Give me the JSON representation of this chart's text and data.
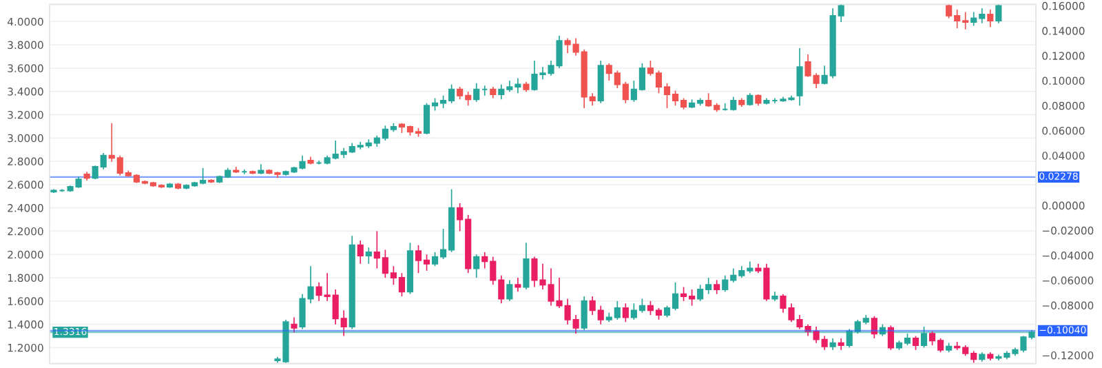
{
  "chart_data": {
    "type": "candlestick",
    "categories": [
      null,
      null,
      null,
      null,
      null,
      null,
      null,
      null,
      null,
      null,
      null,
      null,
      null,
      null,
      null,
      null,
      null,
      null,
      null,
      null,
      null,
      null,
      null,
      null,
      null,
      null,
      null,
      null,
      null,
      null,
      null,
      null,
      null,
      null,
      null,
      null,
      null,
      null,
      null,
      null,
      null,
      null,
      null,
      null,
      null,
      null,
      null,
      null,
      null,
      null,
      null,
      null,
      null,
      null,
      null,
      null,
      null,
      null,
      null,
      null,
      null,
      null,
      null,
      null,
      null,
      null,
      null,
      null,
      null,
      null,
      null,
      null,
      null,
      null,
      null,
      null,
      null,
      null,
      null,
      null,
      null,
      null,
      null,
      null,
      null,
      null,
      null,
      null,
      null,
      null,
      null,
      null,
      null,
      null,
      null,
      null,
      null,
      null,
      null,
      null,
      null,
      null,
      null,
      null,
      null,
      null,
      null,
      null,
      null,
      null,
      null,
      null,
      null,
      null,
      null,
      null,
      null,
      null,
      null
    ],
    "series": [
      {
        "type": "candlestick",
        "axis": "y2",
        "ohlc": [
          [
            0.011,
            0.013,
            0.01,
            0.012
          ],
          [
            0.012,
            0.013,
            0.011,
            0.012
          ],
          [
            0.012,
            0.016,
            0.011,
            0.015
          ],
          [
            0.015,
            0.023,
            0.014,
            0.021
          ],
          [
            0.025,
            0.027,
            0.02,
            0.022
          ],
          [
            0.022,
            0.032,
            0.021,
            0.031
          ],
          [
            0.031,
            0.042,
            0.029,
            0.04
          ],
          [
            0.04,
            0.066,
            0.035,
            0.038
          ],
          [
            0.038,
            0.04,
            0.024,
            0.026
          ],
          [
            0.026,
            0.028,
            0.023,
            0.024
          ],
          [
            0.024,
            0.025,
            0.018,
            0.019
          ],
          [
            0.019,
            0.02,
            0.017,
            0.018
          ],
          [
            0.018,
            0.019,
            0.015,
            0.016
          ],
          [
            0.016,
            0.017,
            0.014,
            0.015
          ],
          [
            0.015,
            0.018,
            0.014,
            0.017
          ],
          [
            0.017,
            0.018,
            0.013,
            0.014
          ],
          [
            0.014,
            0.017,
            0.013,
            0.016
          ],
          [
            0.016,
            0.019,
            0.015,
            0.018
          ],
          [
            0.018,
            0.03,
            0.017,
            0.02
          ],
          [
            0.02,
            0.021,
            0.018,
            0.019
          ],
          [
            0.019,
            0.024,
            0.018,
            0.023
          ],
          [
            0.023,
            0.03,
            0.022,
            0.028
          ],
          [
            0.028,
            0.031,
            0.026,
            0.027
          ],
          [
            0.027,
            0.029,
            0.025,
            0.027
          ],
          [
            0.027,
            0.028,
            0.025,
            0.026
          ],
          [
            0.026,
            0.033,
            0.025,
            0.028
          ],
          [
            0.028,
            0.029,
            0.025,
            0.026
          ],
          [
            0.026,
            0.027,
            0.022,
            0.025
          ],
          [
            0.025,
            0.028,
            0.024,
            0.027
          ],
          [
            0.027,
            0.031,
            0.026,
            0.03
          ],
          [
            0.03,
            0.04,
            0.029,
            0.035
          ],
          [
            0.036,
            0.039,
            0.033,
            0.034
          ],
          [
            0.034,
            0.036,
            0.033,
            0.034
          ],
          [
            0.034,
            0.04,
            0.033,
            0.038
          ],
          [
            0.038,
            0.052,
            0.037,
            0.041
          ],
          [
            0.041,
            0.046,
            0.038,
            0.043
          ],
          [
            0.043,
            0.05,
            0.042,
            0.047
          ],
          [
            0.047,
            0.051,
            0.045,
            0.048
          ],
          [
            0.048,
            0.053,
            0.046,
            0.05
          ],
          [
            0.05,
            0.056,
            0.047,
            0.054
          ],
          [
            0.054,
            0.064,
            0.052,
            0.061
          ],
          [
            0.061,
            0.066,
            0.059,
            0.063
          ],
          [
            0.065,
            0.066,
            0.058,
            0.063
          ],
          [
            0.063,
            0.064,
            0.056,
            0.059
          ],
          [
            0.059,
            0.062,
            0.055,
            0.058
          ],
          [
            0.058,
            0.082,
            0.057,
            0.08
          ],
          [
            0.08,
            0.086,
            0.076,
            0.082
          ],
          [
            0.082,
            0.088,
            0.078,
            0.084
          ],
          [
            0.084,
            0.097,
            0.082,
            0.093
          ],
          [
            0.093,
            0.095,
            0.085,
            0.088
          ],
          [
            0.088,
            0.091,
            0.08,
            0.085
          ],
          [
            0.085,
            0.098,
            0.083,
            0.093
          ],
          [
            0.093,
            0.096,
            0.088,
            0.093
          ],
          [
            0.093,
            0.095,
            0.086,
            0.089
          ],
          [
            0.089,
            0.097,
            0.085,
            0.093
          ],
          [
            0.093,
            0.1,
            0.091,
            0.095
          ],
          [
            0.095,
            0.102,
            0.09,
            0.097
          ],
          [
            0.097,
            0.099,
            0.091,
            0.093
          ],
          [
            0.093,
            0.116,
            0.092,
            0.105
          ],
          [
            0.105,
            0.111,
            0.101,
            0.106
          ],
          [
            0.106,
            0.116,
            0.104,
            0.112
          ],
          [
            0.112,
            0.136,
            0.11,
            0.132
          ],
          [
            0.132,
            0.134,
            0.122,
            0.129
          ],
          [
            0.129,
            0.134,
            0.12,
            0.123
          ],
          [
            0.123,
            0.125,
            0.078,
            0.087
          ],
          [
            0.087,
            0.09,
            0.08,
            0.084
          ],
          [
            0.084,
            0.116,
            0.082,
            0.112
          ],
          [
            0.112,
            0.114,
            0.1,
            0.106
          ],
          [
            0.106,
            0.108,
            0.094,
            0.097
          ],
          [
            0.097,
            0.099,
            0.082,
            0.085
          ],
          [
            0.085,
            0.1,
            0.083,
            0.093
          ],
          [
            0.093,
            0.114,
            0.092,
            0.11
          ],
          [
            0.11,
            0.116,
            0.104,
            0.106
          ],
          [
            0.106,
            0.108,
            0.09,
            0.095
          ],
          [
            0.095,
            0.098,
            0.078,
            0.089
          ],
          [
            0.089,
            0.092,
            0.08,
            0.084
          ],
          [
            0.084,
            0.086,
            0.077,
            0.079
          ],
          [
            0.079,
            0.085,
            0.078,
            0.082
          ],
          [
            0.082,
            0.086,
            0.08,
            0.084
          ],
          [
            0.084,
            0.09,
            0.079,
            0.08
          ],
          [
            0.08,
            0.082,
            0.075,
            0.077
          ],
          [
            0.077,
            0.082,
            0.076,
            0.077
          ],
          [
            0.077,
            0.087,
            0.076,
            0.084
          ],
          [
            0.084,
            0.086,
            0.079,
            0.081
          ],
          [
            0.081,
            0.09,
            0.08,
            0.088
          ],
          [
            0.088,
            0.089,
            0.08,
            0.082
          ],
          [
            0.082,
            0.086,
            0.081,
            0.084
          ],
          [
            0.084,
            0.086,
            0.082,
            0.084
          ],
          [
            0.084,
            0.087,
            0.083,
            0.085
          ],
          [
            0.085,
            0.088,
            0.084,
            0.086
          ],
          [
            0.088,
            0.126,
            0.08,
            0.111
          ],
          [
            0.115,
            0.121,
            0.103,
            0.104
          ],
          [
            0.104,
            0.106,
            0.094,
            0.098
          ],
          [
            0.098,
            0.112,
            0.097,
            0.104
          ],
          [
            0.104,
            0.158,
            0.102,
            0.152
          ],
          [
            0.152,
            0.161,
            0.147,
            0.16
          ],
          null,
          null,
          null,
          null,
          null,
          null,
          null,
          null,
          null,
          null,
          null,
          null,
          [
            0.16,
            0.161,
            0.15,
            0.152
          ],
          [
            0.152,
            0.157,
            0.142,
            0.148
          ],
          [
            0.148,
            0.155,
            0.141,
            0.147
          ],
          [
            0.147,
            0.155,
            0.144,
            0.15
          ],
          [
            0.15,
            0.158,
            0.146,
            0.153
          ],
          [
            0.153,
            0.157,
            0.143,
            0.148
          ],
          [
            0.148,
            0.161,
            0.146,
            0.16
          ],
          null,
          null,
          null,
          null
        ],
        "colors": [
          "#26a69a",
          "#26a69a",
          "#26a69a",
          "#26a69a",
          "#ef5350",
          "#26a69a",
          "#26a69a",
          "#ef5350",
          "#ef5350",
          "#ef5350",
          "#ef5350",
          "#ef5350",
          "#ef5350",
          "#ef5350",
          "#26a69a",
          "#ef5350",
          "#26a69a",
          "#26a69a",
          "#26a69a",
          "#ef5350",
          "#26a69a",
          "#26a69a",
          "#ef5350",
          "#26a69a",
          "#ef5350",
          "#26a69a",
          "#ef5350",
          "#ef5350",
          "#26a69a",
          "#26a69a",
          "#26a69a",
          "#ef5350",
          "#26a69a",
          "#26a69a",
          "#26a69a",
          "#26a69a",
          "#26a69a",
          "#26a69a",
          "#26a69a",
          "#26a69a",
          "#26a69a",
          "#26a69a",
          "#ef5350",
          "#ef5350",
          "#ef5350",
          "#26a69a",
          "#26a69a",
          "#26a69a",
          "#26a69a",
          "#ef5350",
          "#ef5350",
          "#26a69a",
          "#26a69a",
          "#ef5350",
          "#26a69a",
          "#26a69a",
          "#26a69a",
          "#ef5350",
          "#26a69a",
          "#26a69a",
          "#26a69a",
          "#26a69a",
          "#ef5350",
          "#ef5350",
          "#ef5350",
          "#ef5350",
          "#26a69a",
          "#ef5350",
          "#ef5350",
          "#ef5350",
          "#26a69a",
          "#26a69a",
          "#ef5350",
          "#ef5350",
          "#ef5350",
          "#ef5350",
          "#ef5350",
          "#26a69a",
          "#26a69a",
          "#ef5350",
          "#ef5350",
          "#26a69a",
          "#26a69a",
          "#ef5350",
          "#26a69a",
          "#ef5350",
          "#26a69a",
          "#26a69a",
          "#26a69a",
          "#26a69a",
          "#26a69a",
          "#ef5350",
          "#ef5350",
          "#26a69a",
          "#26a69a",
          "#26a69a",
          null,
          null,
          null,
          null,
          null,
          null,
          null,
          null,
          null,
          null,
          null,
          null,
          "#ef5350",
          "#ef5350",
          "#ef5350",
          "#26a69a",
          "#26a69a",
          "#ef5350",
          "#26a69a",
          null,
          null,
          null,
          null
        ]
      },
      {
        "type": "candlestick",
        "ohlc": [
          null,
          null,
          null,
          null,
          null,
          null,
          null,
          null,
          null,
          null,
          null,
          null,
          null,
          null,
          null,
          null,
          null,
          null,
          null,
          null,
          null,
          null,
          null,
          null,
          null,
          null,
          null,
          [
            1.09,
            1.12,
            1.07,
            1.1
          ],
          [
            1.08,
            1.44,
            1.07,
            1.42
          ],
          [
            1.4,
            1.46,
            1.33,
            1.37
          ],
          [
            1.38,
            1.66,
            1.36,
            1.62
          ],
          [
            1.62,
            1.9,
            1.58,
            1.72
          ],
          [
            1.72,
            1.76,
            1.6,
            1.65
          ],
          [
            1.65,
            1.84,
            1.6,
            1.64
          ],
          [
            1.65,
            1.7,
            1.4,
            1.45
          ],
          [
            1.45,
            1.52,
            1.3,
            1.38
          ],
          [
            1.38,
            2.16,
            1.36,
            2.08
          ],
          [
            2.08,
            2.12,
            1.92,
            1.99
          ],
          [
            1.99,
            2.06,
            1.92,
            2.02
          ],
          [
            2.02,
            2.2,
            1.88,
            1.97
          ],
          [
            1.97,
            2.04,
            1.8,
            1.84
          ],
          [
            1.84,
            1.9,
            1.74,
            1.8
          ],
          [
            1.8,
            1.84,
            1.64,
            1.68
          ],
          [
            1.68,
            2.1,
            1.66,
            2.03
          ],
          [
            2.03,
            2.08,
            1.84,
            1.95
          ],
          [
            1.95,
            2.0,
            1.86,
            1.92
          ],
          [
            1.92,
            2.02,
            1.9,
            1.98
          ],
          [
            1.98,
            2.22,
            1.96,
            2.04
          ],
          [
            2.04,
            2.56,
            2.02,
            2.4
          ],
          [
            2.4,
            2.44,
            2.2,
            2.3
          ],
          [
            2.3,
            2.34,
            1.84,
            1.88
          ],
          [
            1.88,
            2.0,
            1.8,
            1.98
          ],
          [
            1.98,
            2.02,
            1.88,
            1.94
          ],
          [
            1.94,
            1.98,
            1.74,
            1.78
          ],
          [
            1.78,
            1.82,
            1.58,
            1.62
          ],
          [
            1.62,
            1.78,
            1.6,
            1.74
          ],
          [
            1.74,
            1.8,
            1.68,
            1.72
          ],
          [
            1.72,
            2.1,
            1.7,
            1.96
          ],
          [
            1.96,
            1.98,
            1.72,
            1.78
          ],
          [
            1.78,
            1.92,
            1.7,
            1.74
          ],
          [
            1.74,
            1.88,
            1.56,
            1.6
          ],
          [
            1.6,
            1.8,
            1.54,
            1.56
          ],
          [
            1.56,
            1.62,
            1.4,
            1.44
          ],
          [
            1.44,
            1.48,
            1.32,
            1.37
          ],
          [
            1.37,
            1.64,
            1.35,
            1.6
          ],
          [
            1.6,
            1.64,
            1.48,
            1.52
          ],
          [
            1.52,
            1.56,
            1.4,
            1.44
          ],
          [
            1.44,
            1.5,
            1.42,
            1.46
          ],
          [
            1.46,
            1.6,
            1.44,
            1.54
          ],
          [
            1.54,
            1.58,
            1.42,
            1.46
          ],
          [
            1.46,
            1.58,
            1.44,
            1.52
          ],
          [
            1.52,
            1.62,
            1.5,
            1.56
          ],
          [
            1.56,
            1.6,
            1.48,
            1.52
          ],
          [
            1.52,
            1.54,
            1.44,
            1.48
          ],
          [
            1.48,
            1.56,
            1.46,
            1.54
          ],
          [
            1.54,
            1.76,
            1.52,
            1.66
          ],
          [
            1.66,
            1.72,
            1.6,
            1.64
          ],
          [
            1.64,
            1.7,
            1.56,
            1.62
          ],
          [
            1.62,
            1.74,
            1.6,
            1.7
          ],
          [
            1.7,
            1.8,
            1.66,
            1.74
          ],
          [
            1.74,
            1.78,
            1.66,
            1.7
          ],
          [
            1.7,
            1.82,
            1.68,
            1.78
          ],
          [
            1.78,
            1.88,
            1.76,
            1.82
          ],
          [
            1.82,
            1.9,
            1.8,
            1.86
          ],
          [
            1.86,
            1.94,
            1.84,
            1.88
          ],
          [
            1.88,
            1.92,
            1.84,
            1.86
          ],
          [
            1.88,
            1.92,
            1.6,
            1.62
          ],
          [
            1.62,
            1.68,
            1.6,
            1.64
          ],
          [
            1.64,
            1.66,
            1.5,
            1.54
          ],
          [
            1.54,
            1.58,
            1.42,
            1.44
          ],
          [
            1.44,
            1.48,
            1.36,
            1.38
          ],
          [
            1.38,
            1.4,
            1.3,
            1.34
          ],
          [
            1.34,
            1.38,
            1.24,
            1.27
          ],
          [
            1.27,
            1.3,
            1.18,
            1.21
          ],
          [
            1.21,
            1.28,
            1.18,
            1.24
          ],
          [
            1.24,
            1.28,
            1.18,
            1.22
          ],
          [
            1.22,
            1.36,
            1.2,
            1.34
          ],
          [
            1.34,
            1.44,
            1.32,
            1.42
          ],
          [
            1.42,
            1.48,
            1.4,
            1.45
          ],
          [
            1.45,
            1.47,
            1.28,
            1.32
          ],
          [
            1.32,
            1.4,
            1.3,
            1.37
          ],
          [
            1.37,
            1.39,
            1.18,
            1.2
          ],
          [
            1.2,
            1.26,
            1.18,
            1.24
          ],
          [
            1.24,
            1.32,
            1.22,
            1.28
          ],
          [
            1.28,
            1.3,
            1.18,
            1.22
          ],
          [
            1.22,
            1.38,
            1.2,
            1.32
          ],
          [
            1.32,
            1.34,
            1.22,
            1.26
          ],
          [
            1.26,
            1.28,
            1.16,
            1.18
          ],
          [
            1.18,
            1.24,
            1.16,
            1.21
          ],
          [
            1.21,
            1.25,
            1.18,
            1.2
          ],
          [
            1.2,
            1.22,
            1.13,
            1.15
          ],
          [
            1.15,
            1.17,
            1.07,
            1.1
          ],
          [
            1.1,
            1.16,
            1.08,
            1.14
          ],
          [
            1.14,
            1.16,
            1.09,
            1.11
          ],
          [
            1.11,
            1.14,
            1.09,
            1.12
          ],
          [
            1.12,
            1.17,
            1.1,
            1.15
          ],
          [
            1.15,
            1.2,
            1.13,
            1.18
          ],
          [
            1.18,
            1.3,
            1.16,
            1.29
          ],
          [
            1.29,
            1.35,
            1.27,
            1.3316
          ]
        ],
        "colors": [
          null,
          null,
          null,
          null,
          null,
          null,
          null,
          null,
          null,
          null,
          null,
          null,
          null,
          null,
          null,
          null,
          null,
          null,
          null,
          null,
          null,
          null,
          null,
          null,
          null,
          null,
          null,
          "#26a69a",
          "#26a69a",
          "#e91e63",
          "#26a69a",
          "#26a69a",
          "#e91e63",
          "#e91e63",
          "#e91e63",
          "#e91e63",
          "#26a69a",
          "#e91e63",
          "#26a69a",
          "#e91e63",
          "#e91e63",
          "#e91e63",
          "#e91e63",
          "#26a69a",
          "#e91e63",
          "#e91e63",
          "#26a69a",
          "#26a69a",
          "#26a69a",
          "#e91e63",
          "#e91e63",
          "#26a69a",
          "#e91e63",
          "#e91e63",
          "#e91e63",
          "#26a69a",
          "#e91e63",
          "#26a69a",
          "#e91e63",
          "#e91e63",
          "#e91e63",
          "#e91e63",
          "#e91e63",
          "#e91e63",
          "#26a69a",
          "#e91e63",
          "#e91e63",
          "#26a69a",
          "#26a69a",
          "#e91e63",
          "#26a69a",
          "#26a69a",
          "#e91e63",
          "#e91e63",
          "#26a69a",
          "#26a69a",
          "#e91e63",
          "#e91e63",
          "#26a69a",
          "#26a69a",
          "#e91e63",
          "#26a69a",
          "#26a69a",
          "#26a69a",
          "#26a69a",
          "#e91e63",
          "#e91e63",
          "#26a69a",
          "#e91e63",
          "#e91e63",
          "#e91e63",
          "#e91e63",
          "#e91e63",
          "#e91e63",
          "#26a69a",
          "#e91e63",
          "#26a69a",
          "#26a69a",
          "#26a69a",
          "#e91e63",
          "#26a69a",
          "#e91e63",
          "#26a69a",
          "#26a69a",
          "#e91e63",
          "#26a69a",
          "#e91e63",
          "#e91e63",
          "#26a69a",
          "#e91e63",
          "#e91e63",
          "#e91e63",
          "#26a69a",
          "#e91e63",
          "#26a69a",
          "#26a69a",
          "#26a69a",
          "#26a69a",
          "#26a69a"
        ]
      }
    ],
    "ylim": [
      1.063,
      4.147
    ],
    "yticks": [
      {
        "value": 1.2,
        "label": "1.2000"
      },
      {
        "value": 1.4,
        "label": "1.4000"
      },
      {
        "value": 1.6,
        "label": "1.6000"
      },
      {
        "value": 1.8,
        "label": "1.8000"
      },
      {
        "value": 2.0,
        "label": "2.0000"
      },
      {
        "value": 2.2,
        "label": "2.2000"
      },
      {
        "value": 2.4,
        "label": "2.4000"
      },
      {
        "value": 2.6,
        "label": "2.6000"
      },
      {
        "value": 2.8,
        "label": "2.8000"
      },
      {
        "value": 3.0,
        "label": "3.0000"
      },
      {
        "value": 3.2,
        "label": "3.2000"
      },
      {
        "value": 3.4,
        "label": "3.4000"
      },
      {
        "value": 3.6,
        "label": "3.6000"
      },
      {
        "value": 3.8,
        "label": "3.8000"
      },
      {
        "value": 4.0,
        "label": "4.0000"
      }
    ],
    "y2lim": [
      -0.1267,
      0.1611
    ],
    "y2ticks": [
      {
        "value": -0.12,
        "label": "−0.12000"
      },
      {
        "value": -0.08,
        "label": "−0.08000"
      },
      {
        "value": -0.06,
        "label": "−0.06000"
      },
      {
        "value": -0.04,
        "label": "−0.04000"
      },
      {
        "value": -0.02,
        "label": "−0.02000"
      },
      {
        "value": 0,
        "label": "0.00000"
      },
      {
        "value": 0.04,
        "label": "0.04000"
      },
      {
        "value": 0.06,
        "label": "0.06000"
      },
      {
        "value": 0.08,
        "label": "0.08000"
      },
      {
        "value": 0.1,
        "label": "0.10000"
      },
      {
        "value": 0.12,
        "label": "0.12000"
      },
      {
        "value": 0.14,
        "label": "0.14000"
      },
      {
        "value": 0.16,
        "label": "0.16000"
      }
    ],
    "ref_lines": [
      {
        "axis": "y",
        "value": 1.3316,
        "label": "1.3316",
        "color": "#26a69a"
      },
      {
        "axis": "y2",
        "value": -0.1004,
        "label": "−0.10040",
        "color": "#2962ff"
      },
      {
        "axis": "y2",
        "value": 0.02278,
        "label": "0.02278",
        "color": "#2962ff"
      }
    ],
    "grid": "y"
  }
}
